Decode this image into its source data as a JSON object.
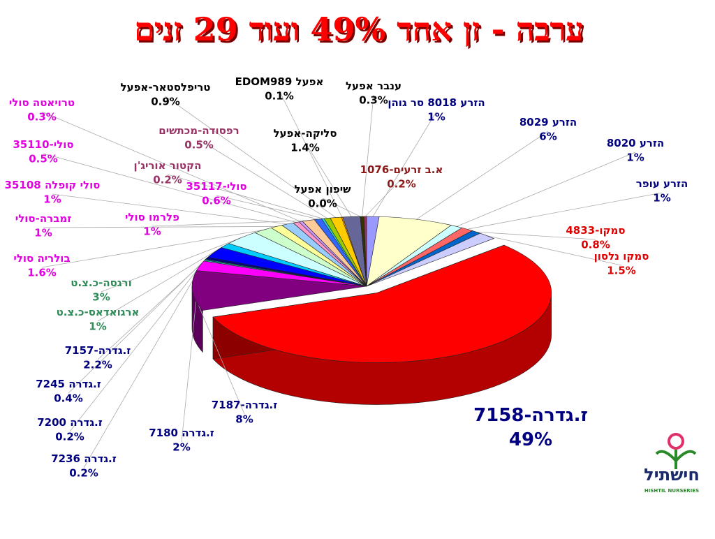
{
  "chart_data": {
    "type": "pie",
    "title": "ערבה - זן אחד 49% ועוד 29 זנים",
    "categories": [
      "הזרע 8018 סר גוהן",
      "הזרע 8029",
      "הזרע 8020",
      "הזרע עופר",
      "סמקו-4833",
      "סמקו נלסון",
      "ז.גדרה-7158",
      "ז.גדרה-7187",
      "ז.גדרה 7180",
      "ז.גדרה 7236",
      "ז.גדרה 7200",
      "ז.גדרה 7245",
      "ז.גדרה-7157",
      "ארגואדאס-כ.צ.ט",
      "ורגסה-כ.צ.ט",
      "בולריה סולי",
      "זמברה-סולי",
      "סולי קופלה 35108",
      "סולי-35110",
      "טרויאטה סולי",
      "פלרמו סולי",
      "סולי-35117",
      "הקטור אוריג'ן",
      "רפסודה-מכתשים",
      "טריפלסטאר-אפעל",
      "EDOM989 אפעל",
      "סליקה-אפעל",
      "שיפון אפעל",
      "ענבר אפעל",
      "א.ב זרעים-1076"
    ],
    "values": [
      1,
      6,
      1,
      1,
      0.8,
      1.5,
      49,
      8,
      2,
      0.2,
      0.2,
      0.4,
      2.2,
      1,
      3,
      1.6,
      1,
      1,
      0.5,
      0.3,
      1,
      0.6,
      0.2,
      0.5,
      0.9,
      0.1,
      1.4,
      0.0,
      0.3,
      0.2
    ],
    "value_labels": [
      "1%",
      "6%",
      "1%",
      "1%",
      "0.8%",
      "1.5%",
      "49%",
      "8%",
      "2%",
      "0.2%",
      "0.2%",
      "0.4%",
      "2.2%",
      "1%",
      "3%",
      "1.6%",
      "1%",
      "1%",
      "0.5%",
      "0.3%",
      "1%",
      "0.6%",
      "0.2%",
      "0.5%",
      "0.9%",
      "0.1%",
      "1.4%",
      "0.0%",
      "0.3%",
      "0.2%"
    ],
    "colors": [
      "#9999ff",
      "#ffffcc",
      "#ccffff",
      "#ff6666",
      "#0066cc",
      "#ccccff",
      "#ff0000",
      "#800080",
      "#ff00ff",
      "#33cccc",
      "#008080",
      "#000080",
      "#0000ff",
      "#00ccff",
      "#ccffff",
      "#ccffcc",
      "#ffff99",
      "#99ccff",
      "#ff99cc",
      "#cc99ff",
      "#ffcc99",
      "#3366ff",
      "#33cccc",
      "#99cc00",
      "#ffcc00",
      "#ff9900",
      "#666699",
      "#969696",
      "#333300",
      "#993366"
    ]
  },
  "logo": {
    "name": "חישתיל",
    "tagline": "HISHTIL NURSERIES"
  }
}
